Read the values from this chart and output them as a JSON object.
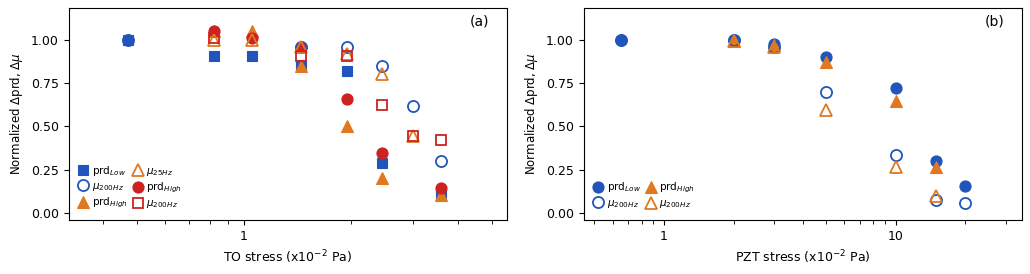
{
  "panel_a": {
    "xlabel": "TO stress (x10$^{-2}$ Pa)",
    "ylabel": "Normalized $\\Delta$prd, $\\Delta\\mu$",
    "label": "(a)",
    "series": [
      {
        "label": "prd$_{Low}$",
        "x": [
          0.47,
          0.82,
          1.05,
          1.45,
          1.95,
          2.45,
          3.6
        ],
        "y": [
          1.0,
          0.905,
          0.905,
          0.855,
          0.82,
          0.285,
          0.105
        ],
        "color": "#2255bb",
        "marker": "s",
        "filled": true,
        "markersize": 7
      },
      {
        "label": "prd$_{High}$",
        "x": [
          0.82,
          1.05,
          1.45,
          1.95,
          2.45,
          3.6
        ],
        "y": [
          1.05,
          1.05,
          0.845,
          0.5,
          0.2,
          0.105
        ],
        "color": "#e07820",
        "marker": "^",
        "filled": true,
        "markersize": 8
      },
      {
        "label": "prd$_{High}$",
        "x": [
          0.82,
          1.05,
          1.45,
          1.95,
          2.45,
          3.6
        ],
        "y": [
          1.05,
          1.01,
          0.955,
          0.655,
          0.345,
          0.145
        ],
        "color": "#cc2222",
        "marker": "o",
        "filled": true,
        "markersize": 8
      },
      {
        "label": "$\\mu_{200Hz}$",
        "x": [
          0.47,
          1.45,
          1.95,
          2.45,
          3.0,
          3.6
        ],
        "y": [
          1.0,
          0.955,
          0.955,
          0.845,
          0.615,
          0.3
        ],
        "color": "#2255bb",
        "marker": "o",
        "filled": false,
        "markersize": 8
      },
      {
        "label": "$\\mu_{25Hz}$",
        "x": [
          0.82,
          1.05,
          1.45,
          1.95,
          2.45,
          3.0
        ],
        "y": [
          1.0,
          1.0,
          0.955,
          0.915,
          0.8,
          0.445
        ],
        "color": "#e07820",
        "marker": "^",
        "filled": false,
        "markersize": 8
      },
      {
        "label": "$\\mu_{200Hz}$",
        "x": [
          0.82,
          1.45,
          1.95,
          2.45,
          3.0,
          3.6
        ],
        "y": [
          1.01,
          0.905,
          0.905,
          0.62,
          0.445,
          0.42
        ],
        "color": "#cc2222",
        "marker": "s",
        "filled": false,
        "markersize": 7
      }
    ],
    "xlim": [
      0.32,
      5.5
    ],
    "ylim": [
      -0.04,
      1.18
    ],
    "yticks": [
      0.0,
      0.25,
      0.5,
      0.75,
      1.0
    ],
    "xticks": [
      1
    ],
    "xticklabels": [
      "1"
    ],
    "legend_order": [
      0,
      3,
      1,
      4,
      2,
      5
    ],
    "legend_labels": [
      "prd$_{Low}$",
      "$\\mu_{200Hz}$",
      "prd$_{High}$",
      "$\\mu_{25Hz}$",
      "prd$_{High}$",
      "$\\mu_{200Hz}$"
    ]
  },
  "panel_b": {
    "xlabel": "PZT stress (x10$^{-2}$ Pa)",
    "ylabel": "Normalized $\\Delta$prd, $\\Delta\\mu$",
    "label": "(b)",
    "series": [
      {
        "label": "prd$_{Low}$",
        "x": [
          0.65,
          2.0,
          3.0,
          5.0,
          10.0,
          15.0,
          20.0
        ],
        "y": [
          1.0,
          1.0,
          0.975,
          0.9,
          0.72,
          0.3,
          0.155
        ],
        "color": "#2255bb",
        "marker": "o",
        "filled": true,
        "markersize": 8
      },
      {
        "label": "prd$_{High}$",
        "x": [
          2.0,
          3.0,
          5.0,
          10.0,
          15.0
        ],
        "y": [
          0.99,
          0.97,
          0.87,
          0.645,
          0.265
        ],
        "color": "#e07820",
        "marker": "^",
        "filled": true,
        "markersize": 8
      },
      {
        "label": "$\\mu_{200Hz}$",
        "x": [
          0.65,
          2.0,
          3.0,
          5.0,
          10.0,
          15.0,
          20.0
        ],
        "y": [
          1.0,
          1.0,
          0.955,
          0.7,
          0.335,
          0.075,
          0.055
        ],
        "color": "#2255bb",
        "marker": "o",
        "filled": false,
        "markersize": 8
      },
      {
        "label": "$\\mu_{200Hz}$",
        "x": [
          2.0,
          3.0,
          5.0,
          10.0,
          15.0
        ],
        "y": [
          0.99,
          0.955,
          0.595,
          0.265,
          0.1
        ],
        "color": "#e07820",
        "marker": "^",
        "filled": false,
        "markersize": 8
      }
    ],
    "xlim": [
      0.45,
      35.0
    ],
    "ylim": [
      -0.04,
      1.18
    ],
    "yticks": [
      0.0,
      0.25,
      0.5,
      0.75,
      1.0
    ],
    "xticks": [
      1,
      10
    ],
    "xticklabels": [
      "1",
      "10"
    ],
    "legend_order": [
      0,
      2,
      1,
      3
    ],
    "legend_labels": [
      "prd$_{Low}$",
      "$\\mu_{200Hz}$",
      "prd$_{High}$",
      "$\\mu_{200Hz}$"
    ]
  },
  "figure_bg": "#ffffff",
  "axes_bg": "#ffffff"
}
